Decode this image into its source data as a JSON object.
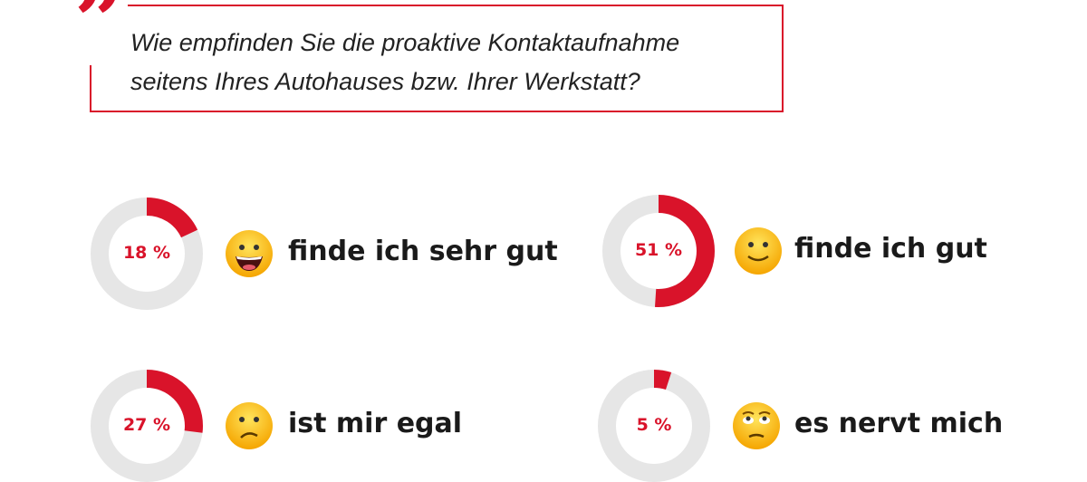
{
  "question": {
    "line1": "Wie empfinden Sie die proaktive Kontaktaufnahme",
    "line2": "seitens Ihres Autohauses bzw. Ihrer Werkstatt?"
  },
  "colors": {
    "accent": "#d9132a",
    "track": "#e6e6e6"
  },
  "chart_data": {
    "type": "pie",
    "title": "Wie empfinden Sie die proaktive Kontaktaufnahme seitens Ihres Autohauses bzw. Ihrer Werkstatt?",
    "items": [
      {
        "label": "finde ich sehr gut",
        "value": 18,
        "value_label": "18 %",
        "emoji": "grinning-face"
      },
      {
        "label": "finde ich gut",
        "value": 51,
        "value_label": "51 %",
        "emoji": "slightly-smiling-face"
      },
      {
        "label": "ist mir egal",
        "value": 27,
        "value_label": "27 %",
        "emoji": "confused-face"
      },
      {
        "label": "es nervt mich",
        "value": 5,
        "value_label": "5 %",
        "emoji": "face-with-rolling-eyes"
      }
    ]
  }
}
